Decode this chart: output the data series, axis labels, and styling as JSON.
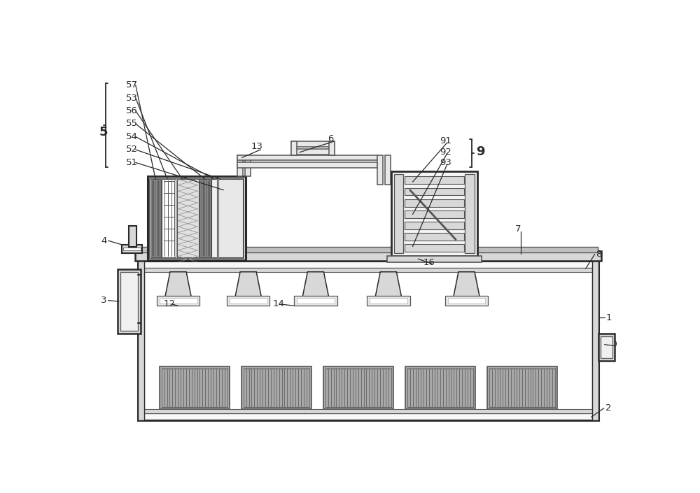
{
  "bg": "#ffffff",
  "lc": "#2a2a2a",
  "lc2": "#555555",
  "g1": "#c0c0c0",
  "g2": "#d8d8d8",
  "g3": "#a8a8a8",
  "g4": "#888888",
  "g5": "#f0f0f0",
  "g6": "#e8e8e8",
  "g7": "#b8b8b8"
}
